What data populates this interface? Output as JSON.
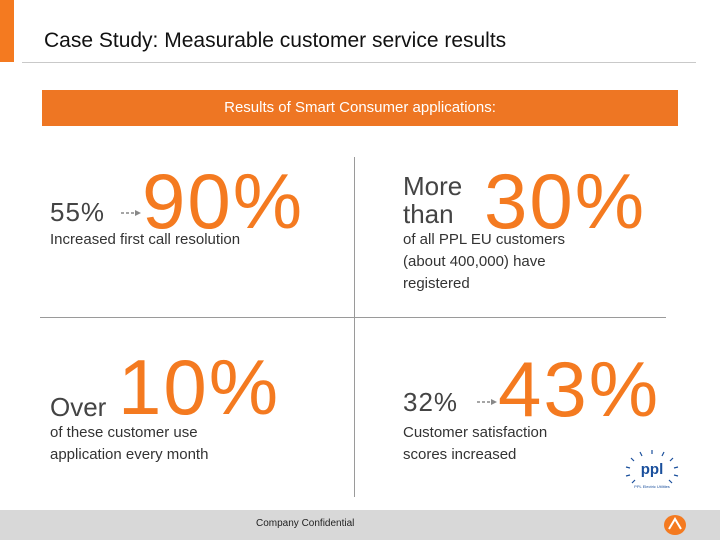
{
  "header": {
    "title": "Case Study:  Measurable customer service results"
  },
  "banner": {
    "text": "Results of Smart Consumer applications:"
  },
  "quad1": {
    "from": "55%",
    "big": "90%",
    "desc": "Increased first call resolution"
  },
  "quad2": {
    "lead_line1": "More",
    "lead_line2": "than",
    "big": "30%",
    "desc_line1": "of all PPL EU customers",
    "desc_line2": "(about 400,000) have",
    "desc_line3": "registered"
  },
  "quad3": {
    "lead": "Over",
    "big": "10%",
    "desc_line1": "of these customer use",
    "desc_line2": "application every month"
  },
  "quad4": {
    "from": "32%",
    "big": "43%",
    "desc_line1": "Customer satisfaction",
    "desc_line2": "scores increased"
  },
  "logo": {
    "text": "ppl",
    "subtext": "PPL Electric Utilities"
  },
  "footer": {
    "text": "Company Confidential"
  },
  "colors": {
    "accent": "#f47a20",
    "banner": "#ee7623",
    "logo_blue": "#1a4f9c"
  }
}
